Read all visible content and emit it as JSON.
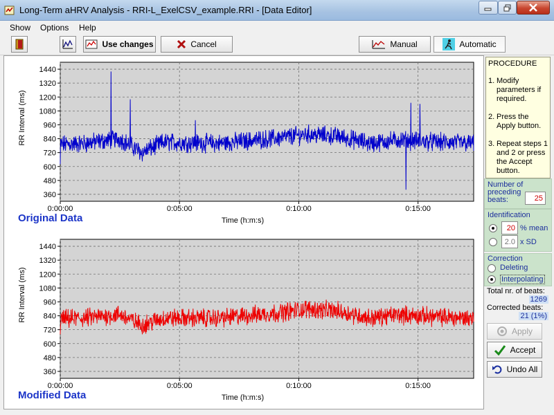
{
  "window": {
    "title": "Long-Term aHRV Analysis - RRI-L_ExelCSV_example.RRI - [Data Editor]",
    "icon": "app-icon"
  },
  "menu": [
    "Show",
    "Options",
    "Help"
  ],
  "toolbar": {
    "use_changes_label": "Use changes",
    "cancel_label": "Cancel",
    "manual_label": "Manual",
    "automatic_label": "Automatic"
  },
  "colors": {
    "original_series": "#0000cc",
    "modified_series": "#ee0000",
    "plot_background": "#d4d4d4",
    "section_label": "#1c35c8",
    "panel_green": "#cbe3cb",
    "procedure_bg": "#ffffe1"
  },
  "charts": {
    "original_label": "Original Data",
    "modified_label": "Modified Data"
  },
  "chart_data": [
    {
      "type": "line",
      "name": "original",
      "xlabel": "Time (h:m:s)",
      "ylabel": "RR Interval (ms)",
      "x_ticks": [
        "0:00:00",
        "0:05:00",
        "0:10:00",
        "0:15:00"
      ],
      "x_tick_seconds": [
        0,
        300,
        600,
        900
      ],
      "xlim": [
        0,
        1040
      ],
      "y_ticks": [
        360,
        480,
        600,
        720,
        840,
        960,
        1080,
        1200,
        1320,
        1440
      ],
      "ylim": [
        300,
        1500
      ],
      "grid": true,
      "series": [
        {
          "color": "#0000cc",
          "baseline": [
            [
              0,
              790
            ],
            [
              60,
              800
            ],
            [
              150,
              840
            ],
            [
              205,
              720
            ],
            [
              260,
              810
            ],
            [
              400,
              800
            ],
            [
              560,
              850
            ],
            [
              620,
              880
            ],
            [
              700,
              860
            ],
            [
              780,
              800
            ],
            [
              850,
              830
            ],
            [
              950,
              810
            ],
            [
              1040,
              800
            ]
          ],
          "spikes": [
            [
              128,
              1420
            ],
            [
              176,
              1180
            ],
            [
              340,
              1000
            ],
            [
              882,
              1150
            ],
            [
              905,
              1140
            ],
            [
              870,
              400
            ],
            [
              0,
              620
            ]
          ]
        }
      ]
    },
    {
      "type": "line",
      "name": "modified",
      "xlabel": "Time (h:m:s)",
      "ylabel": "RR Interval (ms)",
      "x_ticks": [
        "0:00:00",
        "0:05:00",
        "0:10:00",
        "0:15:00"
      ],
      "x_tick_seconds": [
        0,
        300,
        600,
        900
      ],
      "xlim": [
        0,
        1040
      ],
      "y_ticks": [
        360,
        480,
        600,
        720,
        840,
        960,
        1080,
        1200,
        1320,
        1440
      ],
      "ylim": [
        300,
        1500
      ],
      "grid": true,
      "series": [
        {
          "color": "#ee0000",
          "baseline": [
            [
              0,
              810
            ],
            [
              60,
              820
            ],
            [
              150,
              850
            ],
            [
              205,
              760
            ],
            [
              260,
              820
            ],
            [
              400,
              820
            ],
            [
              560,
              870
            ],
            [
              620,
              900
            ],
            [
              700,
              880
            ],
            [
              780,
              820
            ],
            [
              850,
              850
            ],
            [
              950,
              830
            ],
            [
              1040,
              820
            ]
          ],
          "spikes": [
            [
              0,
              680
            ]
          ]
        }
      ]
    }
  ],
  "procedure": {
    "title": "PROCEDURE",
    "steps": [
      {
        "num": "1.",
        "text": "Modify parameters if required."
      },
      {
        "num": "2.",
        "text": "Press the Apply button."
      },
      {
        "num": "3.",
        "text": "Repeat steps 1 and 2 or press the Accept button."
      }
    ]
  },
  "preceding": {
    "label": "Number of preceding beats:",
    "value": "25"
  },
  "identification": {
    "title": "Identification",
    "mean_value": "20",
    "mean_label": "% mean",
    "sd_value": "2.0",
    "sd_label": "x SD",
    "selected": "mean"
  },
  "correction": {
    "title": "Correction",
    "deleting_label": "Deleting",
    "interpolating_label": "Interpolating",
    "selected": "interpolating"
  },
  "stats": {
    "total_label": "Total nr. of beats:",
    "total_value": "1269",
    "corrected_label": "Corrected beats:",
    "corrected_value": "21 (1%)"
  },
  "actions": {
    "apply_label": "Apply",
    "accept_label": "Accept",
    "undo_label": "Undo All"
  }
}
